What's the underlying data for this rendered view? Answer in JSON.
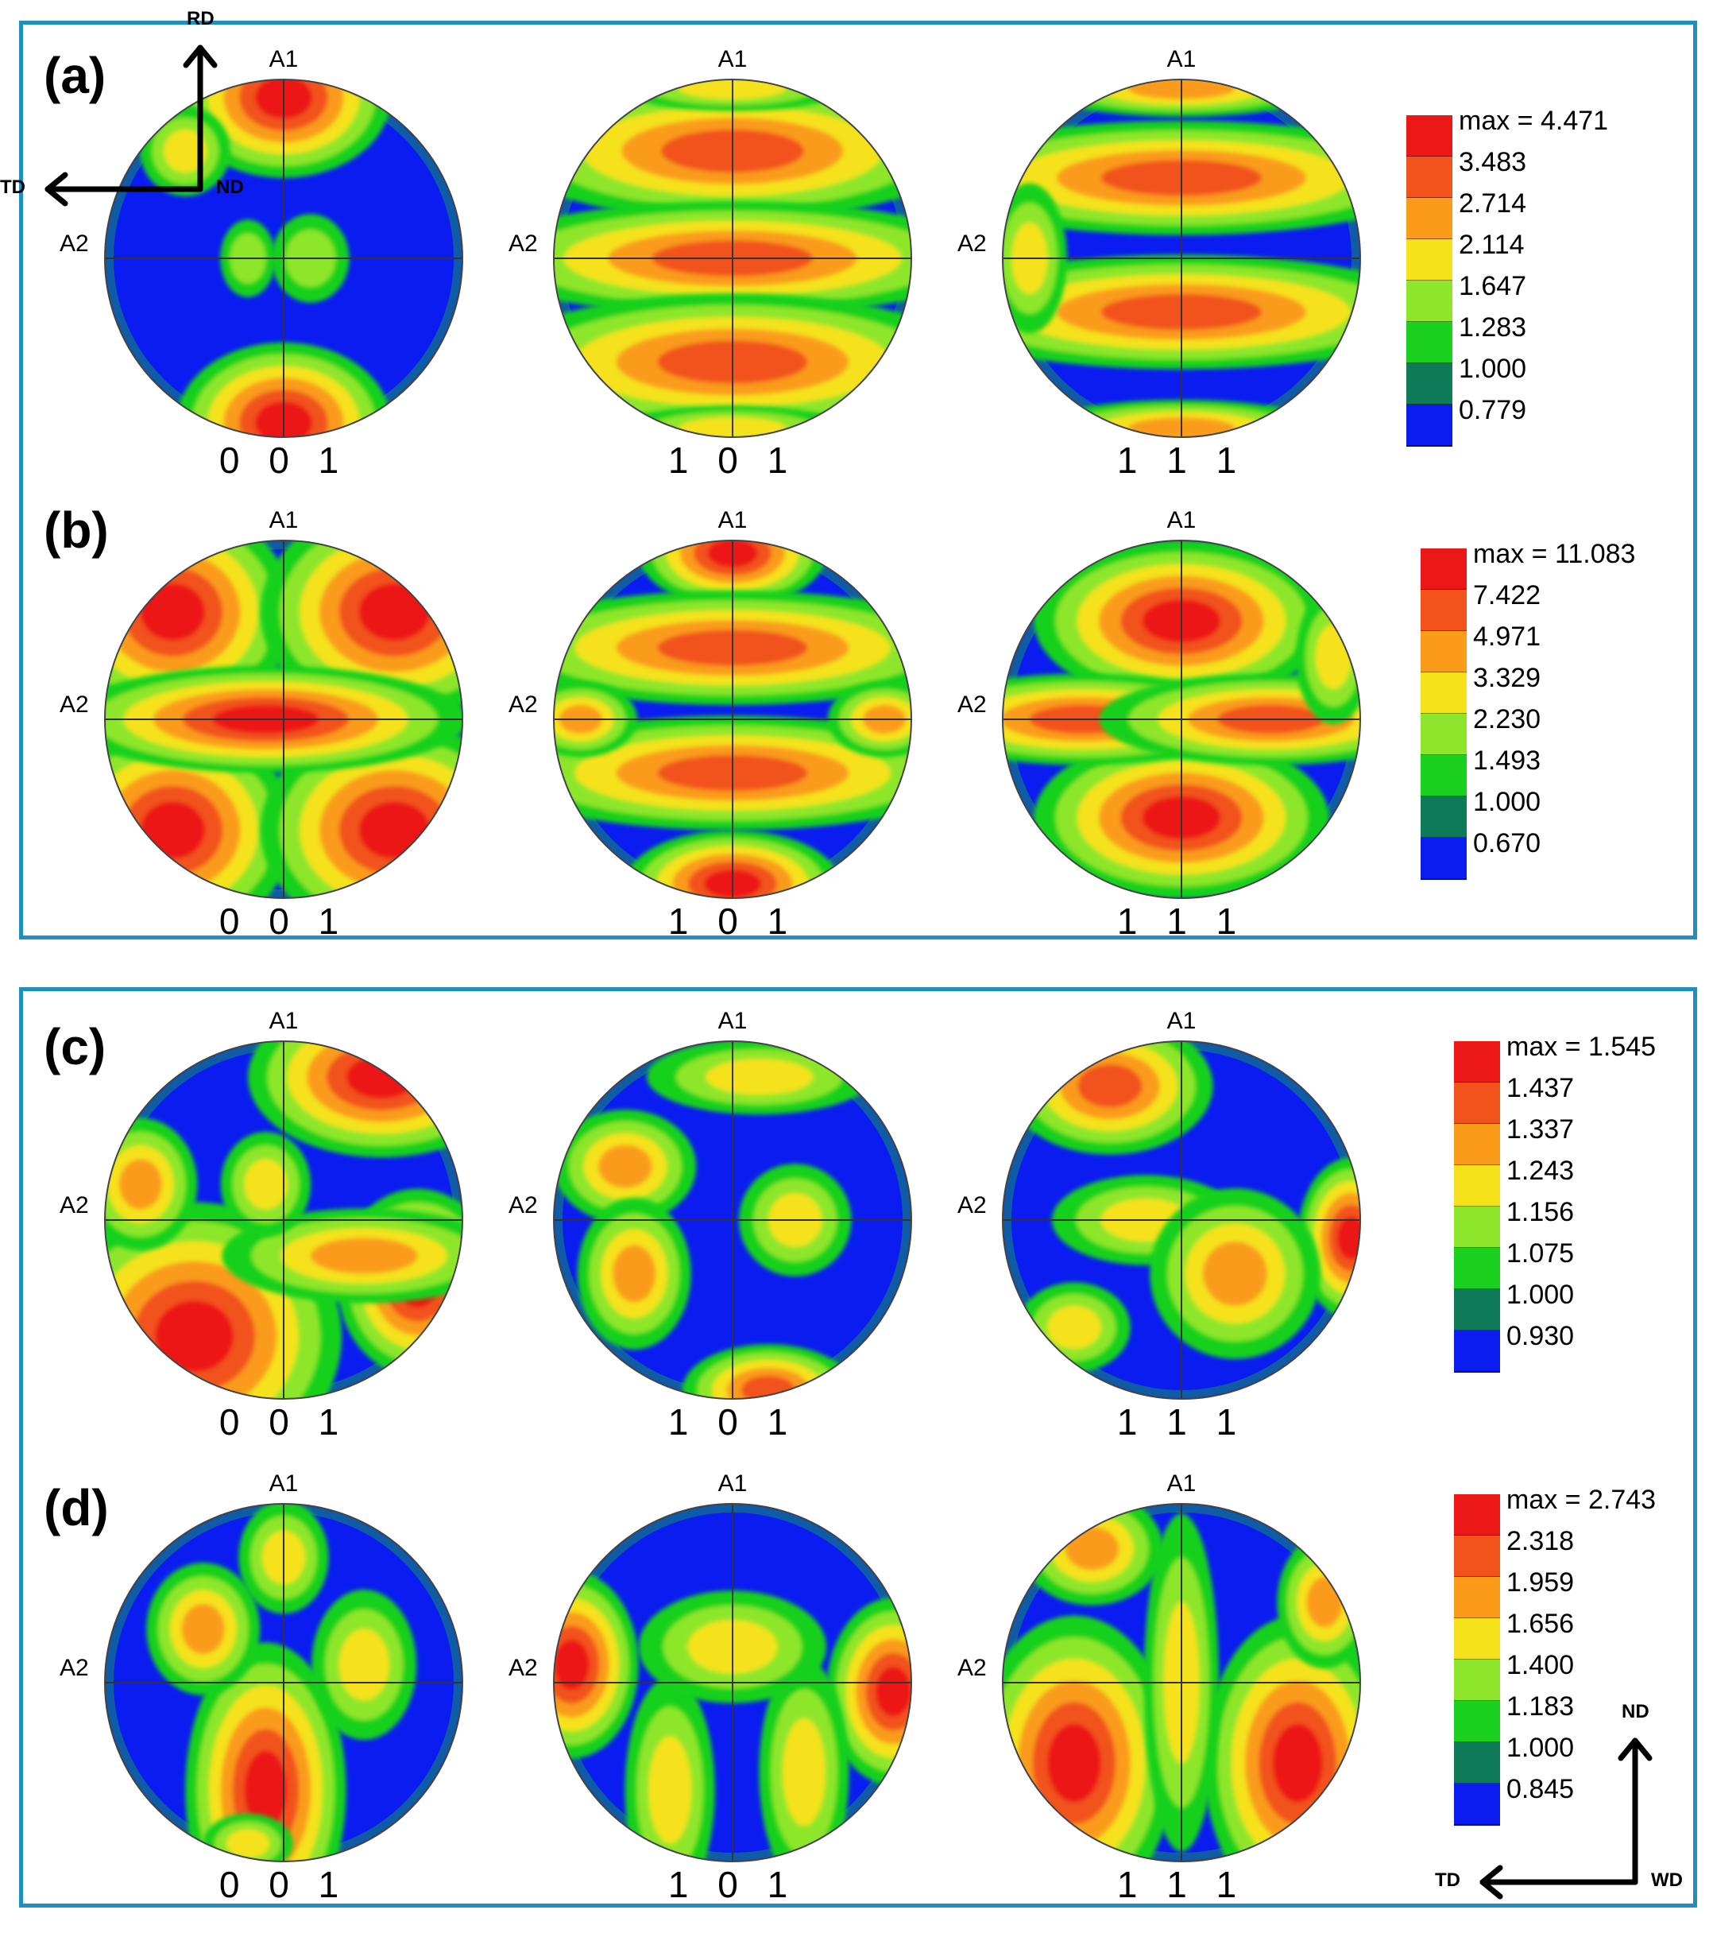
{
  "colors": {
    "frame": "#1f8fbf",
    "levels": [
      "#0a1cf0",
      "#0e7a57",
      "#19d11e",
      "#8ee62c",
      "#f5e21a",
      "#fa9b1a",
      "#f2531b",
      "#ec1818"
    ]
  },
  "panels": [
    {
      "label": "(a)",
      "legend": {
        "max": "max = 4.471",
        "levels": [
          "3.483",
          "2.714",
          "2.114",
          "1.647",
          "1.283",
          "1.000",
          "0.779"
        ]
      },
      "figures": [
        {
          "axis_top": "A1",
          "axis_left": "A2",
          "miller": "0 0 1",
          "blobs": [
            [
              0.0,
              -0.9,
              0.16,
              0.12,
              7
            ],
            [
              0.0,
              0.92,
              0.16,
              0.12,
              7
            ],
            [
              -0.55,
              -0.6,
              0.12,
              0.12,
              4
            ],
            [
              0.15,
              0.0,
              0.14,
              0.16,
              3
            ],
            [
              -0.2,
              0.0,
              0.1,
              0.14,
              3
            ]
          ]
        },
        {
          "axis_top": "A1",
          "axis_left": "A2",
          "miller": "1 0 1",
          "blobs": [
            [
              0.0,
              -0.6,
              0.4,
              0.12,
              6
            ],
            [
              0.0,
              0.0,
              0.45,
              0.1,
              6
            ],
            [
              0.0,
              0.58,
              0.42,
              0.12,
              6
            ],
            [
              0.0,
              -0.95,
              0.3,
              0.06,
              4
            ],
            [
              0.0,
              0.95,
              0.3,
              0.06,
              4
            ]
          ]
        },
        {
          "axis_top": "A1",
          "axis_left": "A2",
          "miller": "1 1 1",
          "blobs": [
            [
              0.0,
              -0.45,
              0.45,
              0.1,
              6
            ],
            [
              0.0,
              0.3,
              0.45,
              0.1,
              6
            ],
            [
              0.0,
              -0.95,
              0.3,
              0.06,
              5
            ],
            [
              0.0,
              0.95,
              0.3,
              0.06,
              5
            ],
            [
              -0.85,
              0.0,
              0.1,
              0.2,
              4
            ]
          ]
        }
      ]
    },
    {
      "label": "(b)",
      "legend": {
        "max": "max = 11.083",
        "levels": [
          "7.422",
          "4.971",
          "3.329",
          "2.230",
          "1.493",
          "1.000",
          "0.670"
        ]
      },
      "axes": {
        "up": "RD",
        "left": "TD",
        "corner": "ND"
      },
      "figures": [
        {
          "axis_top": "A1",
          "axis_left": "A2",
          "miller": "0 0 1",
          "blobs": [
            [
              -0.62,
              -0.6,
              0.18,
              0.16,
              7
            ],
            [
              0.62,
              -0.6,
              0.2,
              0.16,
              7
            ],
            [
              -0.62,
              0.62,
              0.18,
              0.16,
              7
            ],
            [
              0.62,
              0.62,
              0.2,
              0.16,
              7
            ],
            [
              -0.1,
              0.0,
              0.3,
              0.08,
              7
            ]
          ]
        },
        {
          "axis_top": "A1",
          "axis_left": "A2",
          "miller": "1 0 1",
          "blobs": [
            [
              0.0,
              -0.93,
              0.14,
              0.08,
              7
            ],
            [
              0.0,
              -0.4,
              0.42,
              0.1,
              6
            ],
            [
              0.0,
              0.3,
              0.42,
              0.1,
              6
            ],
            [
              0.0,
              0.92,
              0.16,
              0.08,
              7
            ],
            [
              -0.85,
              0.0,
              0.12,
              0.08,
              5
            ],
            [
              0.85,
              0.0,
              0.12,
              0.08,
              5
            ]
          ]
        },
        {
          "axis_top": "A1",
          "axis_left": "A2",
          "miller": "1 1 1",
          "blobs": [
            [
              0.0,
              -0.55,
              0.22,
              0.12,
              7
            ],
            [
              0.0,
              0.55,
              0.22,
              0.12,
              7
            ],
            [
              -0.55,
              0.0,
              0.3,
              0.08,
              6
            ],
            [
              0.5,
              0.0,
              0.3,
              0.08,
              6
            ],
            [
              0.85,
              -0.35,
              0.1,
              0.18,
              4
            ]
          ]
        }
      ]
    },
    {
      "label": "(c)",
      "legend": {
        "max": "max = 1.545",
        "levels": [
          "1.437",
          "1.337",
          "1.243",
          "1.156",
          "1.075",
          "1.000",
          "0.930"
        ]
      },
      "figures": [
        {
          "axis_top": "A1",
          "axis_left": "A2",
          "miller": "0 0 1",
          "blobs": [
            [
              0.55,
              -0.8,
              0.2,
              0.12,
              7
            ],
            [
              -0.5,
              0.65,
              0.22,
              0.2,
              7
            ],
            [
              0.75,
              0.35,
              0.12,
              0.14,
              7
            ],
            [
              -0.8,
              -0.2,
              0.12,
              0.14,
              5
            ],
            [
              0.45,
              0.2,
              0.3,
              0.1,
              5
            ],
            [
              -0.1,
              -0.2,
              0.12,
              0.14,
              4
            ]
          ]
        },
        {
          "axis_top": "A1",
          "axis_left": "A2",
          "miller": "1 0 1",
          "blobs": [
            [
              0.15,
              -0.8,
              0.3,
              0.1,
              4
            ],
            [
              -0.6,
              -0.3,
              0.15,
              0.12,
              5
            ],
            [
              -0.55,
              0.3,
              0.12,
              0.16,
              5
            ],
            [
              0.2,
              0.95,
              0.15,
              0.08,
              6
            ],
            [
              0.35,
              0.0,
              0.15,
              0.15,
              4
            ]
          ]
        },
        {
          "axis_top": "A1",
          "axis_left": "A2",
          "miller": "1 1 1",
          "blobs": [
            [
              -0.4,
              -0.75,
              0.18,
              0.12,
              6
            ],
            [
              0.95,
              0.1,
              0.08,
              0.12,
              7
            ],
            [
              -0.2,
              0.0,
              0.25,
              0.12,
              4
            ],
            [
              0.3,
              0.3,
              0.18,
              0.18,
              5
            ],
            [
              -0.6,
              0.6,
              0.15,
              0.12,
              4
            ]
          ]
        }
      ]
    },
    {
      "label": "(d)",
      "legend": {
        "max": "max = 2.743",
        "levels": [
          "2.318",
          "1.959",
          "1.656",
          "1.400",
          "1.183",
          "1.000",
          "0.845"
        ]
      },
      "axes": {
        "up": "ND",
        "left": "TD",
        "corner": "WD"
      },
      "figures": [
        {
          "axis_top": "A1",
          "axis_left": "A2",
          "miller": "0 0 1",
          "blobs": [
            [
              -0.1,
              0.6,
              0.12,
              0.22,
              7
            ],
            [
              -0.45,
              -0.3,
              0.12,
              0.14,
              5
            ],
            [
              0.45,
              -0.1,
              0.14,
              0.2,
              4
            ],
            [
              0.0,
              -0.7,
              0.12,
              0.15,
              4
            ],
            [
              -0.2,
              0.9,
              0.12,
              0.08,
              4
            ]
          ]
        },
        {
          "axis_top": "A1",
          "axis_left": "A2",
          "miller": "1 0 1",
          "blobs": [
            [
              -0.9,
              -0.1,
              0.1,
              0.14,
              7
            ],
            [
              0.9,
              0.05,
              0.1,
              0.14,
              7
            ],
            [
              -0.35,
              0.6,
              0.12,
              0.3,
              4
            ],
            [
              0.4,
              0.5,
              0.12,
              0.3,
              4
            ],
            [
              0.0,
              -0.2,
              0.25,
              0.15,
              4
            ]
          ]
        },
        {
          "axis_top": "A1",
          "axis_left": "A2",
          "miller": "1 1 1",
          "blobs": [
            [
              -0.6,
              0.45,
              0.15,
              0.22,
              7
            ],
            [
              0.65,
              0.45,
              0.14,
              0.22,
              7
            ],
            [
              -0.5,
              -0.75,
              0.15,
              0.12,
              5
            ],
            [
              0.0,
              0.0,
              0.1,
              0.45,
              4
            ],
            [
              0.8,
              -0.45,
              0.1,
              0.14,
              5
            ]
          ]
        }
      ]
    }
  ]
}
